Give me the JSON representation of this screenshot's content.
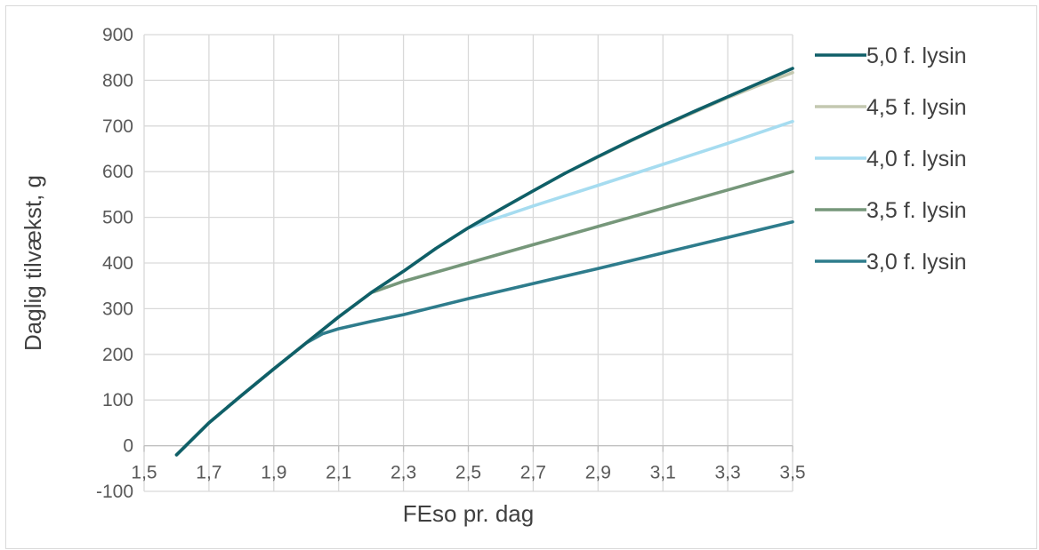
{
  "chart_data": {
    "type": "line",
    "title": "",
    "xlabel": "FEso pr. dag",
    "ylabel": "Daglig tilvækst, g",
    "xlim": [
      1.5,
      3.5
    ],
    "ylim": [
      -100,
      900
    ],
    "x_ticks": [
      "1,5",
      "1,7",
      "1,9",
      "2,1",
      "2,3",
      "2,5",
      "2,7",
      "2,9",
      "3,1",
      "3,3",
      "3,5"
    ],
    "y_ticks": [
      "-100",
      "0",
      "100",
      "200",
      "300",
      "400",
      "500",
      "600",
      "700",
      "800",
      "900"
    ],
    "grid": true,
    "legend_position": "right",
    "series": [
      {
        "name": "5,0 f. lysin",
        "color": "#0f5f68",
        "x": [
          1.6,
          1.7,
          1.8,
          1.9,
          2.0,
          2.1,
          2.2,
          2.3,
          2.4,
          2.5,
          2.6,
          2.7,
          2.8,
          2.9,
          3.0,
          3.1,
          3.2,
          3.3,
          3.4,
          3.5
        ],
        "y": [
          -20,
          50,
          110,
          168,
          225,
          282,
          335,
          382,
          432,
          477,
          518,
          558,
          597,
          633,
          668,
          701,
          733,
          764,
          795,
          826
        ]
      },
      {
        "name": "4,5 f. lysin",
        "color": "#c4c8b0",
        "x": [
          1.6,
          1.7,
          1.8,
          1.9,
          2.0,
          2.1,
          2.2,
          2.3,
          2.4,
          2.5,
          2.6,
          2.7,
          2.8,
          2.9,
          3.0,
          3.1,
          3.2,
          3.3,
          3.4,
          3.5
        ],
        "y": [
          -20,
          50,
          110,
          168,
          225,
          282,
          335,
          382,
          432,
          477,
          518,
          558,
          597,
          632,
          667,
          700,
          731,
          762,
          790,
          817
        ]
      },
      {
        "name": "4,0 f. lysin",
        "color": "#a6dcf0",
        "x": [
          1.6,
          1.7,
          1.8,
          1.9,
          2.0,
          2.1,
          2.2,
          2.3,
          2.4,
          2.5,
          2.7,
          2.9,
          3.1,
          3.3,
          3.5
        ],
        "y": [
          -20,
          50,
          110,
          168,
          225,
          282,
          335,
          382,
          432,
          477,
          525,
          570,
          616,
          662,
          710
        ]
      },
      {
        "name": "3,5 f. lysin",
        "color": "#76977a",
        "x": [
          1.6,
          1.7,
          1.8,
          1.9,
          2.0,
          2.1,
          2.2,
          2.3,
          2.5,
          2.7,
          2.9,
          3.1,
          3.3,
          3.5
        ],
        "y": [
          -20,
          50,
          110,
          168,
          225,
          282,
          335,
          360,
          400,
          440,
          480,
          520,
          560,
          600
        ]
      },
      {
        "name": "3,0 f. lysin",
        "color": "#2e7c8c",
        "x": [
          1.6,
          1.7,
          1.8,
          1.9,
          2.0,
          2.05,
          2.1,
          2.2,
          2.3,
          2.5,
          2.7,
          2.9,
          3.1,
          3.3,
          3.5
        ],
        "y": [
          -20,
          50,
          110,
          168,
          225,
          245,
          256,
          272,
          287,
          322,
          355,
          388,
          422,
          456,
          490
        ]
      }
    ]
  }
}
